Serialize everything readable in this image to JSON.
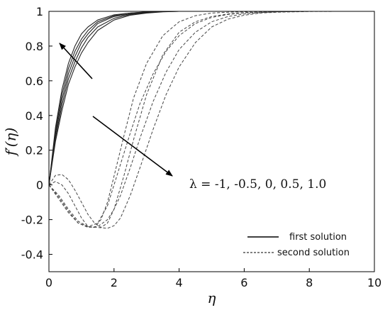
{
  "chart_data": {
    "type": "line",
    "title": "",
    "xlabel": "η",
    "ylabel": "f′(η)",
    "xlim": [
      0,
      10
    ],
    "ylim": [
      -0.5,
      1
    ],
    "xticks": [
      "0",
      "2",
      "4",
      "6",
      "8",
      "10"
    ],
    "yticks": [
      "-0.4",
      "-0.2",
      "0",
      "0.2",
      "0.4",
      "0.6",
      "0.8",
      "1"
    ],
    "grid": false,
    "legend": {
      "placement": "bottom-right",
      "entries": [
        {
          "label": "first solution",
          "style": "solid"
        },
        {
          "label": "second solution",
          "style": "dashed"
        }
      ]
    },
    "annotation": {
      "text": "λ = -1, -0.5, 0, 0.5, 1.0",
      "lambda_values": [
        -1,
        -0.5,
        0,
        0.5,
        1.0
      ]
    },
    "series": [
      {
        "style": "solid",
        "x": [
          0,
          0.2,
          0.4,
          0.6,
          0.8,
          1,
          1.2,
          1.5,
          2,
          2.5,
          3,
          3.5,
          4,
          5,
          6,
          8,
          10
        ],
        "y": [
          0,
          0.33,
          0.55,
          0.7,
          0.8,
          0.87,
          0.91,
          0.95,
          0.98,
          0.99,
          0.997,
          1,
          1,
          1,
          1,
          1,
          1
        ]
      },
      {
        "style": "solid",
        "x": [
          0,
          0.2,
          0.4,
          0.6,
          0.8,
          1,
          1.2,
          1.5,
          2,
          2.5,
          3,
          3.5,
          4,
          5,
          6,
          8,
          10
        ],
        "y": [
          0,
          0.31,
          0.52,
          0.67,
          0.77,
          0.84,
          0.89,
          0.94,
          0.975,
          0.99,
          0.996,
          1,
          1,
          1,
          1,
          1,
          1
        ]
      },
      {
        "style": "solid",
        "x": [
          0,
          0.2,
          0.4,
          0.6,
          0.8,
          1,
          1.2,
          1.5,
          2,
          2.5,
          3,
          3.5,
          4,
          5,
          6,
          8,
          10
        ],
        "y": [
          0,
          0.29,
          0.49,
          0.64,
          0.74,
          0.82,
          0.87,
          0.93,
          0.97,
          0.985,
          0.995,
          0.999,
          1,
          1,
          1,
          1,
          1
        ]
      },
      {
        "style": "solid",
        "x": [
          0,
          0.2,
          0.4,
          0.6,
          0.8,
          1,
          1.2,
          1.5,
          2,
          2.5,
          3,
          3.5,
          4,
          5,
          6,
          8,
          10
        ],
        "y": [
          0,
          0.27,
          0.46,
          0.61,
          0.71,
          0.79,
          0.85,
          0.91,
          0.96,
          0.982,
          0.993,
          0.998,
          1,
          1,
          1,
          1,
          1
        ]
      },
      {
        "style": "solid",
        "x": [
          0,
          0.2,
          0.4,
          0.6,
          0.8,
          1,
          1.2,
          1.5,
          2,
          2.5,
          3,
          3.5,
          4,
          5,
          6,
          8,
          10
        ],
        "y": [
          0,
          0.25,
          0.43,
          0.58,
          0.68,
          0.76,
          0.82,
          0.89,
          0.95,
          0.978,
          0.99,
          0.997,
          1,
          1,
          1,
          1,
          1
        ]
      },
      {
        "style": "dashed",
        "x": [
          0,
          0.2,
          0.4,
          0.6,
          0.8,
          1,
          1.2,
          1.4,
          1.6,
          1.8,
          2,
          2.3,
          2.6,
          3,
          3.5,
          4,
          4.5,
          5,
          5.5,
          6,
          7,
          8,
          10
        ],
        "y": [
          0,
          0.055,
          0.06,
          0.03,
          -0.03,
          -0.1,
          -0.17,
          -0.22,
          -0.245,
          -0.22,
          -0.14,
          0.05,
          0.26,
          0.52,
          0.75,
          0.88,
          0.94,
          0.97,
          0.985,
          0.993,
          0.998,
          1,
          1
        ]
      },
      {
        "style": "dashed",
        "x": [
          0,
          0.2,
          0.4,
          0.6,
          0.8,
          1,
          1.2,
          1.4,
          1.6,
          1.8,
          2,
          2.3,
          2.6,
          3,
          3.5,
          4,
          4.5,
          5,
          5.5,
          6,
          7,
          8,
          10
        ],
        "y": [
          0,
          0.02,
          0.0,
          -0.05,
          -0.12,
          -0.19,
          -0.24,
          -0.245,
          -0.2,
          -0.1,
          0.05,
          0.28,
          0.5,
          0.7,
          0.86,
          0.94,
          0.975,
          0.99,
          0.995,
          0.998,
          1,
          1,
          1
        ]
      },
      {
        "style": "dashed",
        "x": [
          0,
          0.3,
          0.6,
          0.9,
          1.2,
          1.5,
          1.8,
          2,
          2.2,
          2.5,
          2.8,
          3.2,
          3.6,
          4,
          4.5,
          5,
          5.5,
          6,
          6.5,
          7,
          8,
          9,
          10
        ],
        "y": [
          0,
          -0.06,
          -0.14,
          -0.21,
          -0.24,
          -0.22,
          -0.12,
          0.0,
          0.12,
          0.3,
          0.47,
          0.64,
          0.77,
          0.86,
          0.93,
          0.965,
          0.982,
          0.992,
          0.996,
          0.998,
          1,
          1,
          1
        ]
      },
      {
        "style": "dashed",
        "x": [
          0,
          0.3,
          0.6,
          0.9,
          1.2,
          1.5,
          1.8,
          2,
          2.2,
          2.5,
          2.8,
          3.2,
          3.6,
          4,
          4.5,
          5,
          5.5,
          6,
          6.5,
          7,
          8,
          9,
          10
        ],
        "y": [
          0,
          -0.07,
          -0.15,
          -0.22,
          -0.245,
          -0.24,
          -0.2,
          -0.14,
          -0.06,
          0.1,
          0.27,
          0.48,
          0.65,
          0.78,
          0.88,
          0.94,
          0.97,
          0.985,
          0.993,
          0.997,
          1,
          1,
          1
        ]
      },
      {
        "style": "dashed",
        "x": [
          0,
          0.3,
          0.6,
          0.9,
          1.2,
          1.5,
          1.8,
          2,
          2.2,
          2.5,
          2.8,
          3.2,
          3.6,
          4,
          4.5,
          5,
          5.5,
          6,
          6.5,
          7,
          8,
          9,
          10
        ],
        "y": [
          0,
          -0.08,
          -0.16,
          -0.22,
          -0.24,
          -0.245,
          -0.25,
          -0.235,
          -0.19,
          -0.06,
          0.1,
          0.32,
          0.52,
          0.68,
          0.82,
          0.91,
          0.955,
          0.978,
          0.99,
          0.995,
          0.999,
          1,
          1
        ]
      }
    ]
  }
}
